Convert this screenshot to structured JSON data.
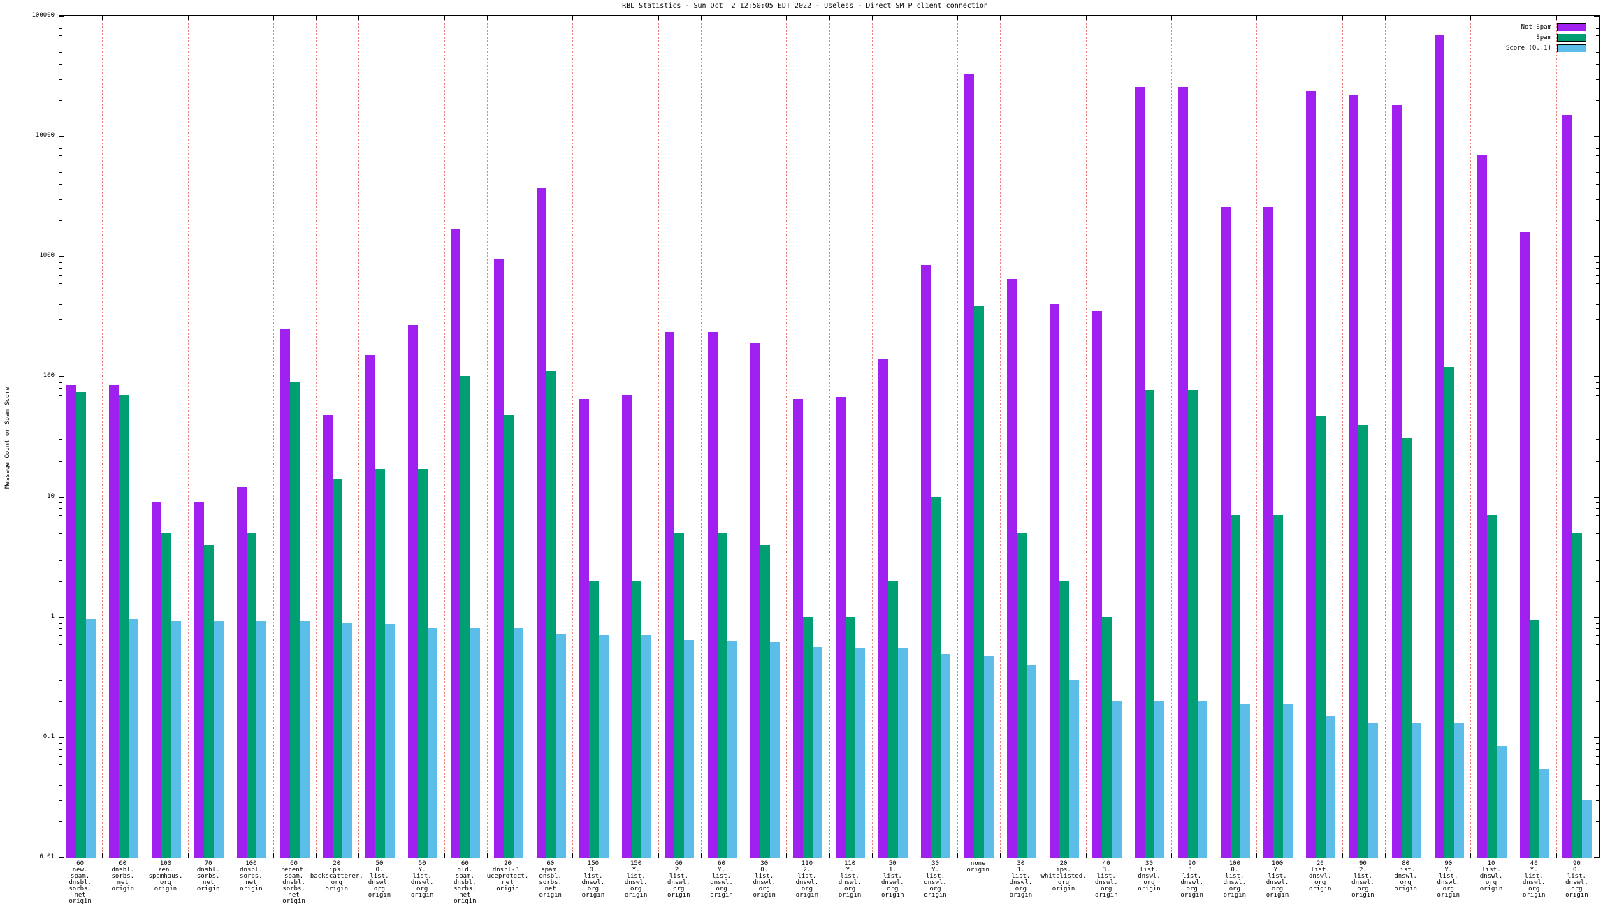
{
  "chart_data": {
    "type": "bar",
    "title": "RBL Statistics - Sun Oct  2 12:50:05 EDT 2022 - Useless - Direct SMTP client connection",
    "ylabel": "Message Count or Spam Score",
    "xlabel": "",
    "y_scale": "log",
    "ylim": [
      0.01,
      100000
    ],
    "y_tick_labels": [
      "100000",
      "10000",
      "1000",
      "100",
      "10",
      "1",
      "0.1",
      "0.01"
    ],
    "grid": "vertical dotted",
    "legend_position": "top-right",
    "background": "#ffffff",
    "categories": [
      [
        "60",
        "new.",
        "spam.",
        "dnsbl.",
        "sorbs.",
        "net",
        "origin"
      ],
      [
        "60",
        "dnsbl.",
        "sorbs.",
        "net",
        "origin"
      ],
      [
        "100",
        "zen.",
        "spamhaus.",
        "org",
        "origin"
      ],
      [
        "70",
        "dnsbl.",
        "sorbs.",
        "net",
        "origin"
      ],
      [
        "100",
        "dnsbl.",
        "sorbs.",
        "net",
        "origin"
      ],
      [
        "60",
        "recent.",
        "spam.",
        "dnsbl.",
        "sorbs.",
        "net",
        "origin"
      ],
      [
        "20",
        "ips.",
        "backscatterer.",
        "org",
        "origin"
      ],
      [
        "50",
        "0.",
        "list.",
        "dnswl.",
        "org",
        "origin"
      ],
      [
        "50",
        "Y.",
        "list.",
        "dnswl.",
        "org",
        "origin"
      ],
      [
        "60",
        "old.",
        "spam.",
        "dnsbl.",
        "sorbs.",
        "net",
        "origin"
      ],
      [
        "20",
        "dnsbl-3.",
        "uceprotect.",
        "net",
        "origin"
      ],
      [
        "60",
        "spam.",
        "dnsbl.",
        "sorbs.",
        "net",
        "origin"
      ],
      [
        "150",
        "0.",
        "list.",
        "dnswl.",
        "org",
        "origin"
      ],
      [
        "150",
        "Y.",
        "list.",
        "dnswl.",
        "org",
        "origin"
      ],
      [
        "60",
        "2.",
        "list.",
        "dnswl.",
        "org",
        "origin"
      ],
      [
        "60",
        "Y.",
        "list.",
        "dnswl.",
        "org",
        "origin"
      ],
      [
        "30",
        "0.",
        "list.",
        "dnswl.",
        "org",
        "origin"
      ],
      [
        "110",
        "2.",
        "list.",
        "dnswl.",
        "org",
        "origin"
      ],
      [
        "110",
        "Y.",
        "list.",
        "dnswl.",
        "org",
        "origin"
      ],
      [
        "50",
        "1.",
        "list.",
        "dnswl.",
        "org",
        "origin"
      ],
      [
        "30",
        "Y.",
        "list.",
        "dnswl.",
        "org",
        "origin"
      ],
      [
        "none",
        "origin"
      ],
      [
        "30",
        "1.",
        "list.",
        "dnswl.",
        "org",
        "origin"
      ],
      [
        "20",
        "ips.",
        "whitelisted.",
        "org",
        "origin"
      ],
      [
        "40",
        "3.",
        "list.",
        "dnswl.",
        "org",
        "origin"
      ],
      [
        "30",
        "list.",
        "dnswl.",
        "org",
        "origin"
      ],
      [
        "90",
        "3.",
        "list.",
        "dnswl.",
        "org",
        "origin"
      ],
      [
        "100",
        "0.",
        "list.",
        "dnswl.",
        "org",
        "origin"
      ],
      [
        "100",
        "Y.",
        "list.",
        "dnswl.",
        "org",
        "origin"
      ],
      [
        "20",
        "list.",
        "dnswl.",
        "org",
        "origin"
      ],
      [
        "90",
        "2.",
        "list.",
        "dnswl.",
        "org",
        "origin"
      ],
      [
        "80",
        "list.",
        "dnswl.",
        "org",
        "origin"
      ],
      [
        "90",
        "Y.",
        "list.",
        "dnswl.",
        "org",
        "origin"
      ],
      [
        "10",
        "list.",
        "dnswl.",
        "org",
        "origin"
      ],
      [
        "40",
        "Y.",
        "list.",
        "dnswl.",
        "org",
        "origin"
      ],
      [
        "90",
        "0.",
        "list.",
        "dnswl.",
        "org",
        "origin"
      ]
    ],
    "series": [
      {
        "name": "Not Spam",
        "color": "#a020f0",
        "values": [
          85,
          85,
          9,
          9,
          12,
          250,
          48,
          150,
          270,
          1700,
          950,
          3700,
          65,
          70,
          235,
          235,
          190,
          65,
          68,
          140,
          850,
          33000,
          650,
          400,
          350,
          26000,
          26000,
          2600,
          2600,
          24000,
          22000,
          18000,
          70000,
          7000,
          1600,
          15000
        ]
      },
      {
        "name": "Spam",
        "color": "#009e73",
        "values": [
          75,
          70,
          5,
          4,
          5,
          90,
          14,
          17,
          17,
          100,
          48,
          110,
          2,
          2,
          5,
          5,
          4,
          1,
          1,
          2,
          10,
          390,
          5,
          2,
          1,
          78,
          78,
          7,
          7,
          47,
          40,
          31,
          120,
          7,
          0.95,
          5
        ]
      },
      {
        "name": "Score (0..1)",
        "color": "#5bbde8",
        "values": [
          0.97,
          0.97,
          0.93,
          0.93,
          0.92,
          0.93,
          0.9,
          0.88,
          0.82,
          0.82,
          0.8,
          0.72,
          0.7,
          0.7,
          0.65,
          0.63,
          0.62,
          0.57,
          0.55,
          0.55,
          0.5,
          0.48,
          0.4,
          0.3,
          0.2,
          0.2,
          0.2,
          0.19,
          0.19,
          0.15,
          0.13,
          0.13,
          0.13,
          0.085,
          0.055,
          0.03
        ]
      }
    ]
  }
}
